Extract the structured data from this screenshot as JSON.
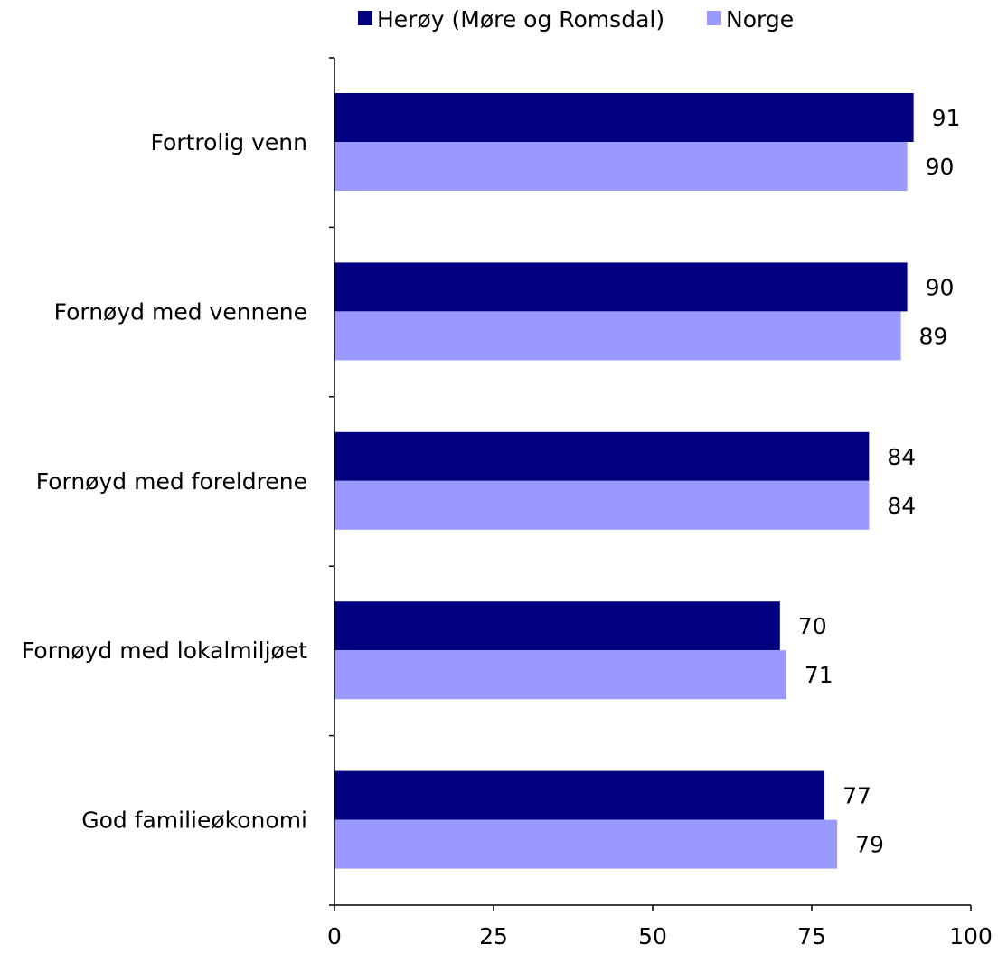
{
  "colors": {
    "series_1": "#000080",
    "series_2": "#9999ff",
    "axis": "#000000",
    "background": "#ffffff"
  },
  "legend": {
    "position": "top-center"
  },
  "chart_data": {
    "type": "bar",
    "orientation": "horizontal",
    "categories": [
      "Fortrolig venn",
      "Fornøyd med vennene",
      "Fornøyd med foreldrene",
      "Fornøyd med lokalmiljøet",
      "God familieøkonomi"
    ],
    "series": [
      {
        "name": "Herøy (Møre og Romsdal)",
        "values": [
          91,
          90,
          84,
          70,
          77
        ]
      },
      {
        "name": "Norge",
        "values": [
          90,
          89,
          84,
          71,
          79
        ]
      }
    ],
    "data_labels": [
      [
        "91",
        "90",
        "84",
        "70",
        "77"
      ],
      [
        "90",
        "89",
        "84",
        "71",
        "79"
      ]
    ],
    "xlim": [
      0,
      100
    ],
    "xticks": [
      "0",
      "25",
      "50",
      "75",
      "100"
    ],
    "grid": false,
    "title": "",
    "xlabel": "",
    "ylabel": ""
  }
}
